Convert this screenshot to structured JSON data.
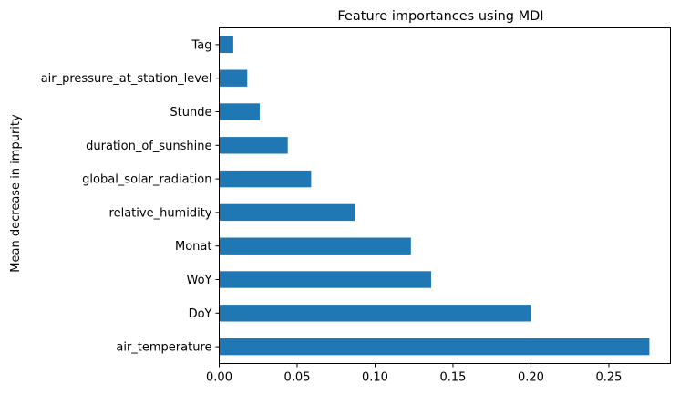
{
  "chart_data": {
    "type": "bar",
    "orientation": "horizontal",
    "title": "Feature importances using MDI",
    "xlabel": "",
    "ylabel": "Mean decrease in impurity",
    "categories": [
      "air_temperature",
      "DoY",
      "WoY",
      "Monat",
      "relative_humidity",
      "global_solar_radiation",
      "duration_of_sunshine",
      "Stunde",
      "air_pressure_at_station_level",
      "Tag"
    ],
    "values": [
      0.276,
      0.2,
      0.136,
      0.123,
      0.087,
      0.059,
      0.044,
      0.026,
      0.018,
      0.009
    ],
    "xlim": [
      0,
      0.2895
    ],
    "xticks": [
      0.0,
      0.05,
      0.1,
      0.15,
      0.2,
      0.25
    ],
    "xtick_labels": [
      "0.00",
      "0.05",
      "0.10",
      "0.15",
      "0.20",
      "0.25"
    ],
    "grid": false,
    "legend": false,
    "bar_color": "#1f77b4"
  }
}
